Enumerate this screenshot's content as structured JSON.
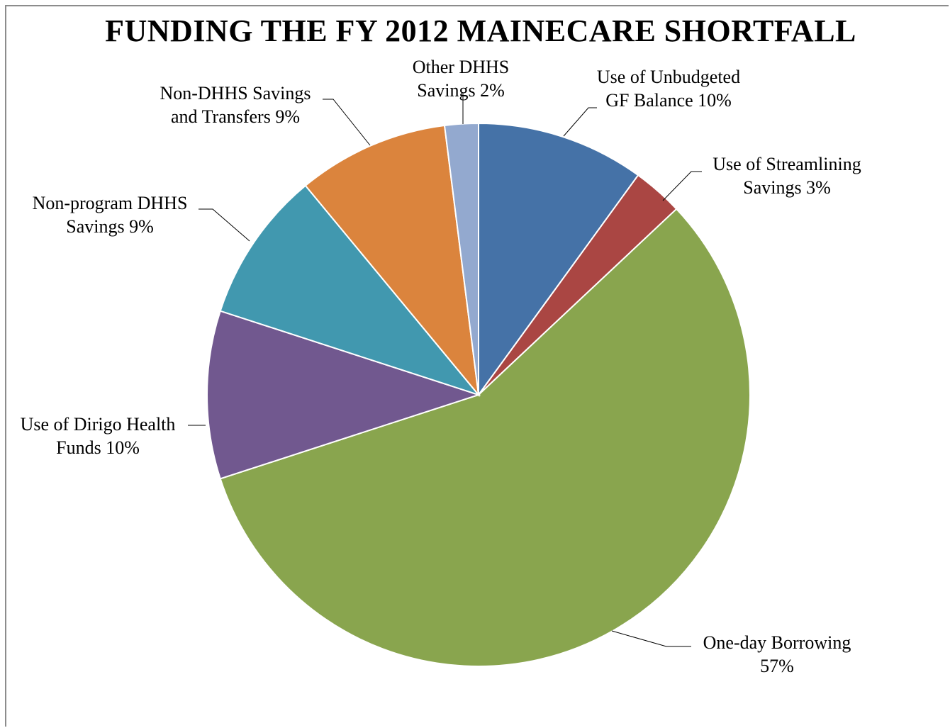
{
  "chart_data": {
    "type": "pie",
    "title": "FUNDING THE FY 2012 MAINECARE SHORTFALL",
    "slices": [
      {
        "label_lines": [
          "Use of Unbudgeted",
          "GF Balance 10%"
        ],
        "value": 10,
        "color": "#4572a7"
      },
      {
        "label_lines": [
          "Use of Streamlining",
          "Savings 3%"
        ],
        "value": 3,
        "color": "#aa4643"
      },
      {
        "label_lines": [
          "One-day Borrowing",
          "57%"
        ],
        "value": 57,
        "color": "#89a54e"
      },
      {
        "label_lines": [
          "Use of Dirigo Health",
          "Funds 10%"
        ],
        "value": 10,
        "color": "#71588f"
      },
      {
        "label_lines": [
          "Non-program DHHS",
          "Savings 9%"
        ],
        "value": 9,
        "color": "#4198af"
      },
      {
        "label_lines": [
          "Non-DHHS Savings",
          "and Transfers 9%"
        ],
        "value": 9,
        "color": "#db843d"
      },
      {
        "label_lines": [
          "Other DHHS",
          "Savings 2%"
        ],
        "value": 2,
        "color": "#93a9cf"
      }
    ],
    "legend": "none",
    "data_labels": "outside-with-leader-lines"
  }
}
